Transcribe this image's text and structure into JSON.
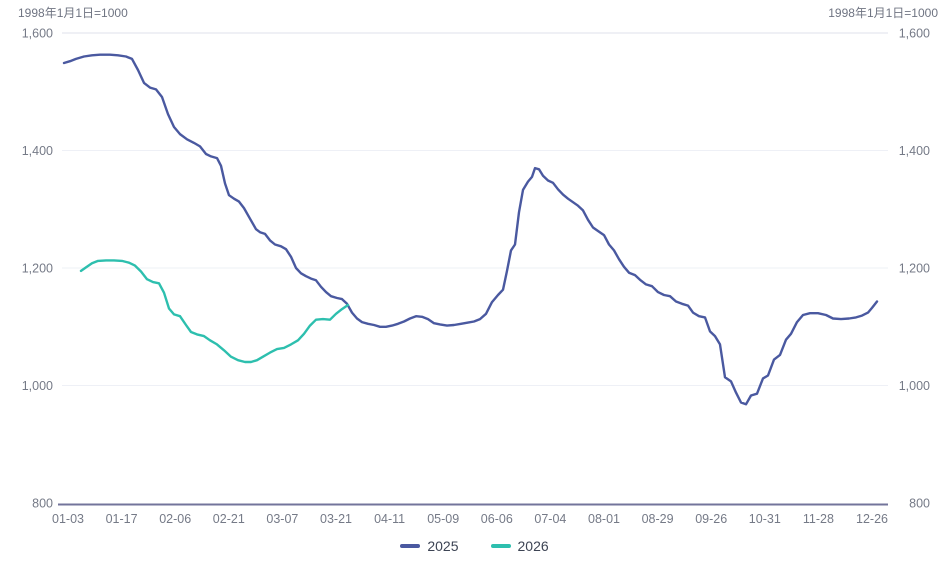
{
  "chart_data": {
    "type": "line",
    "base_note": "1998年1月1日=1000",
    "x_tick_labels": [
      "01-03",
      "01-17",
      "02-06",
      "02-21",
      "03-07",
      "03-21",
      "04-11",
      "05-09",
      "06-06",
      "07-04",
      "08-01",
      "08-29",
      "09-26",
      "10-31",
      "11-28",
      "12-26"
    ],
    "y_ticks": [
      {
        "value": 1600,
        "label": "1,600"
      },
      {
        "value": 1400,
        "label": "1,400"
      },
      {
        "value": 1200,
        "label": "1,200"
      },
      {
        "value": 1000,
        "label": "1,000"
      },
      {
        "value": 800,
        "label": "800"
      }
    ],
    "ylim": [
      800,
      1600
    ],
    "grid_on": true,
    "legend_position": "bottom-center",
    "colors": {
      "series_2025": "#4a59a0",
      "series_2026": "#2dbfae",
      "grid_top": "#dfe2eb",
      "grid_inner": "#eef0f6",
      "axis_line": "#73749b",
      "axis_text": "#757a87",
      "legend_text": "#3d4454"
    },
    "series": [
      {
        "name": "2025",
        "color": "#4a59a0",
        "points": [
          [
            64,
            1549
          ],
          [
            70,
            1552
          ],
          [
            76,
            1556
          ],
          [
            84,
            1560
          ],
          [
            92,
            1562
          ],
          [
            100,
            1563
          ],
          [
            110,
            1563
          ],
          [
            118,
            1562
          ],
          [
            126,
            1560
          ],
          [
            132,
            1556
          ],
          [
            138,
            1537
          ],
          [
            144,
            1515
          ],
          [
            150,
            1507
          ],
          [
            156,
            1504
          ],
          [
            162,
            1491
          ],
          [
            168,
            1462
          ],
          [
            174,
            1440
          ],
          [
            180,
            1428
          ],
          [
            187,
            1419
          ],
          [
            194,
            1413
          ],
          [
            200,
            1407
          ],
          [
            206,
            1394
          ],
          [
            211,
            1390
          ],
          [
            217,
            1387
          ],
          [
            221,
            1374
          ],
          [
            225,
            1344
          ],
          [
            229,
            1324
          ],
          [
            234,
            1318
          ],
          [
            239,
            1313
          ],
          [
            244,
            1302
          ],
          [
            250,
            1284
          ],
          [
            256,
            1266
          ],
          [
            260,
            1261
          ],
          [
            265,
            1258
          ],
          [
            270,
            1247
          ],
          [
            275,
            1240
          ],
          [
            281,
            1237
          ],
          [
            286,
            1232
          ],
          [
            291,
            1219
          ],
          [
            296,
            1200
          ],
          [
            301,
            1191
          ],
          [
            306,
            1186
          ],
          [
            311,
            1182
          ],
          [
            316,
            1179
          ],
          [
            321,
            1168
          ],
          [
            326,
            1159
          ],
          [
            331,
            1152
          ],
          [
            337,
            1149
          ],
          [
            342,
            1147
          ],
          [
            347,
            1139
          ],
          [
            352,
            1124
          ],
          [
            357,
            1114
          ],
          [
            362,
            1108
          ],
          [
            368,
            1105
          ],
          [
            374,
            1103
          ],
          [
            380,
            1100
          ],
          [
            386,
            1100
          ],
          [
            392,
            1102
          ],
          [
            398,
            1105
          ],
          [
            404,
            1109
          ],
          [
            410,
            1114
          ],
          [
            416,
            1118
          ],
          [
            422,
            1117
          ],
          [
            428,
            1113
          ],
          [
            434,
            1106
          ],
          [
            440,
            1104
          ],
          [
            447,
            1102
          ],
          [
            454,
            1103
          ],
          [
            461,
            1105
          ],
          [
            468,
            1107
          ],
          [
            474,
            1109
          ],
          [
            480,
            1113
          ],
          [
            486,
            1122
          ],
          [
            492,
            1142
          ],
          [
            498,
            1154
          ],
          [
            503,
            1163
          ],
          [
            507,
            1195
          ],
          [
            511,
            1230
          ],
          [
            515,
            1240
          ],
          [
            519,
            1295
          ],
          [
            523,
            1333
          ],
          [
            528,
            1347
          ],
          [
            532,
            1355
          ],
          [
            535,
            1370
          ],
          [
            539,
            1368
          ],
          [
            543,
            1357
          ],
          [
            548,
            1349
          ],
          [
            553,
            1345
          ],
          [
            558,
            1334
          ],
          [
            563,
            1325
          ],
          [
            568,
            1318
          ],
          [
            573,
            1312
          ],
          [
            578,
            1306
          ],
          [
            583,
            1298
          ],
          [
            588,
            1282
          ],
          [
            593,
            1269
          ],
          [
            598,
            1263
          ],
          [
            604,
            1256
          ],
          [
            609,
            1240
          ],
          [
            614,
            1230
          ],
          [
            619,
            1215
          ],
          [
            624,
            1202
          ],
          [
            629,
            1192
          ],
          [
            635,
            1188
          ],
          [
            640,
            1180
          ],
          [
            646,
            1172
          ],
          [
            652,
            1169
          ],
          [
            658,
            1159
          ],
          [
            664,
            1154
          ],
          [
            670,
            1152
          ],
          [
            676,
            1143
          ],
          [
            682,
            1139
          ],
          [
            688,
            1136
          ],
          [
            693,
            1124
          ],
          [
            699,
            1118
          ],
          [
            705,
            1116
          ],
          [
            710,
            1092
          ],
          [
            715,
            1084
          ],
          [
            720,
            1070
          ],
          [
            725,
            1014
          ],
          [
            731,
            1007
          ],
          [
            736,
            988
          ],
          [
            741,
            971
          ],
          [
            746,
            968
          ],
          [
            751,
            983
          ],
          [
            757,
            986
          ],
          [
            763,
            1012
          ],
          [
            768,
            1017
          ],
          [
            774,
            1044
          ],
          [
            780,
            1052
          ],
          [
            786,
            1078
          ],
          [
            791,
            1088
          ],
          [
            797,
            1108
          ],
          [
            803,
            1120
          ],
          [
            810,
            1123
          ],
          [
            818,
            1123
          ],
          [
            826,
            1120
          ],
          [
            833,
            1114
          ],
          [
            841,
            1113
          ],
          [
            849,
            1114
          ],
          [
            856,
            1116
          ],
          [
            862,
            1119
          ],
          [
            868,
            1124
          ],
          [
            872,
            1132
          ],
          [
            877,
            1143
          ]
        ]
      },
      {
        "name": "2026",
        "color": "#2dbfae",
        "points": [
          [
            81,
            1195
          ],
          [
            86,
            1201
          ],
          [
            92,
            1208
          ],
          [
            98,
            1212
          ],
          [
            106,
            1213
          ],
          [
            114,
            1213
          ],
          [
            122,
            1212
          ],
          [
            129,
            1209
          ],
          [
            135,
            1204
          ],
          [
            141,
            1194
          ],
          [
            147,
            1181
          ],
          [
            153,
            1176
          ],
          [
            159,
            1174
          ],
          [
            164,
            1158
          ],
          [
            169,
            1131
          ],
          [
            174,
            1121
          ],
          [
            180,
            1118
          ],
          [
            186,
            1103
          ],
          [
            191,
            1091
          ],
          [
            197,
            1087
          ],
          [
            204,
            1084
          ],
          [
            210,
            1077
          ],
          [
            217,
            1070
          ],
          [
            224,
            1060
          ],
          [
            231,
            1049
          ],
          [
            238,
            1043
          ],
          [
            245,
            1040
          ],
          [
            251,
            1040
          ],
          [
            257,
            1043
          ],
          [
            263,
            1049
          ],
          [
            270,
            1056
          ],
          [
            277,
            1062
          ],
          [
            284,
            1064
          ],
          [
            291,
            1070
          ],
          [
            298,
            1077
          ],
          [
            304,
            1088
          ],
          [
            310,
            1102
          ],
          [
            316,
            1112
          ],
          [
            323,
            1113
          ],
          [
            330,
            1112
          ],
          [
            336,
            1122
          ],
          [
            342,
            1130
          ],
          [
            348,
            1137
          ]
        ]
      }
    ]
  }
}
